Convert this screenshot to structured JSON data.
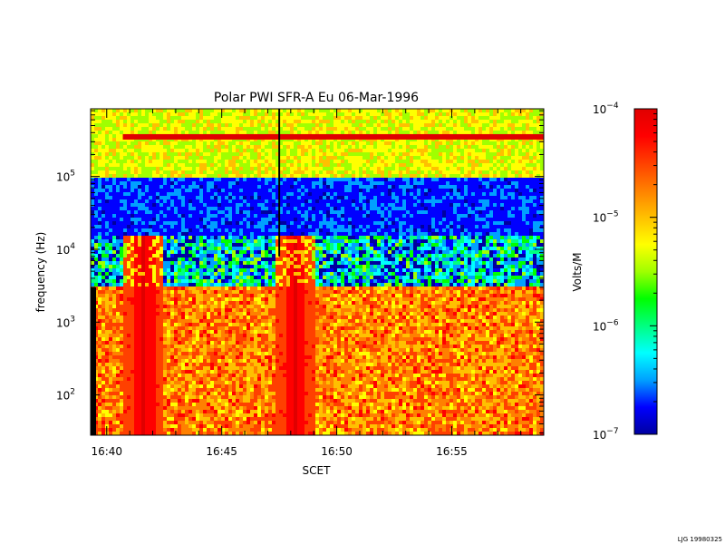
{
  "chart_data": {
    "type": "heatmap",
    "title": "Polar PWI SFR-A Eu  06-Mar-1996",
    "xlabel": "SCET",
    "ylabel": "frequency (Hz)",
    "x_ticks": [
      "16:40",
      "16:45",
      "16:50",
      "16:55"
    ],
    "x_tick_minutes": [
      0,
      5,
      10,
      15
    ],
    "xlim_minutes": [
      -0.7,
      19.0
    ],
    "y_scale": "log",
    "ylim": [
      28,
      850000
    ],
    "y_ticks": [
      {
        "value": 100,
        "base": "10",
        "exp": "2"
      },
      {
        "value": 1000,
        "base": "10",
        "exp": "3"
      },
      {
        "value": 10000,
        "base": "10",
        "exp": "4"
      },
      {
        "value": 100000,
        "base": "10",
        "exp": "5"
      }
    ],
    "colorbar": {
      "label": "Volts/M",
      "scale": "log",
      "range": [
        1e-07,
        0.0001
      ],
      "ticks": [
        {
          "value": 0.0001,
          "base": "10",
          "exp": "−4"
        },
        {
          "value": 1e-05,
          "base": "10",
          "exp": "−5"
        },
        {
          "value": 1e-06,
          "base": "10",
          "exp": "−6"
        },
        {
          "value": 1e-07,
          "base": "10",
          "exp": "−7"
        }
      ],
      "colors": [
        "#0000a0",
        "#0000ff",
        "#00a0ff",
        "#00ffff",
        "#00ff80",
        "#00ff00",
        "#a0ff00",
        "#ffff00",
        "#ffc000",
        "#ff8000",
        "#ff4000",
        "#ff0000",
        "#e00000"
      ]
    },
    "bands": [
      {
        "name": "high",
        "f_range": [
          100000,
          850000
        ],
        "intensity": [
          -5.6,
          -5.0
        ]
      },
      {
        "name": "mid",
        "f_range": [
          15000,
          100000
        ],
        "intensity": [
          -6.9,
          -6.5
        ]
      },
      {
        "name": "transition",
        "f_range": [
          3000,
          15000
        ],
        "intensity": [
          -6.6,
          -5.5
        ]
      },
      {
        "name": "low",
        "f_range": [
          28,
          3000
        ],
        "intensity": [
          -5.2,
          -4.3
        ]
      }
    ],
    "features": [
      {
        "name": "narrowband line",
        "f": 350000,
        "level": -4.1
      },
      {
        "name": "burst",
        "minute": 1.6,
        "level": -4.1
      },
      {
        "name": "burst",
        "minute": 8.2,
        "level": -4.1
      },
      {
        "name": "data gap",
        "minute": 7.5
      }
    ]
  },
  "footer": {
    "stamp": "LJG 19980325"
  }
}
